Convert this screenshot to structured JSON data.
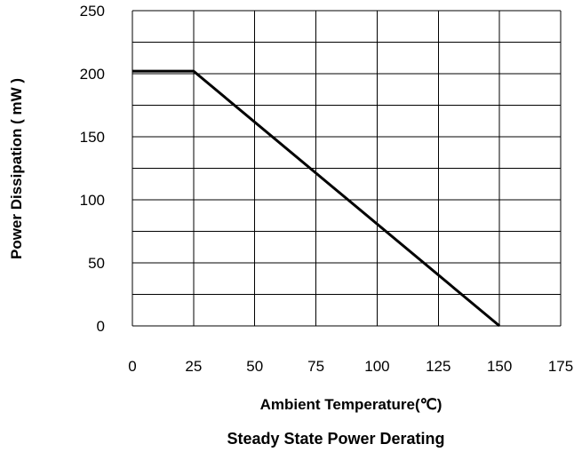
{
  "chart_data": {
    "type": "line",
    "title": "Steady State Power Derating",
    "xlabel": "Ambient Temperature(℃)",
    "ylabel": "Power Dissipation ( mW )",
    "xlim": [
      0,
      175
    ],
    "ylim": [
      0,
      250
    ],
    "x_ticks": [
      0,
      25,
      50,
      75,
      100,
      125,
      150,
      175
    ],
    "y_ticks": [
      0,
      50,
      100,
      150,
      200,
      250
    ],
    "x_tick_labels": [
      "0",
      "25",
      "50",
      "75",
      "100",
      "125",
      "150",
      "175"
    ],
    "y_tick_labels": [
      "0",
      "50",
      "100",
      "150",
      "200",
      "250"
    ],
    "x_gridlines": [
      0,
      25,
      50,
      75,
      100,
      125,
      150,
      175
    ],
    "y_gridlines": [
      0,
      25,
      50,
      75,
      100,
      125,
      150,
      175,
      200,
      225,
      250
    ],
    "grid": true,
    "legend": "none",
    "line_color": "#000000",
    "series": [
      {
        "points": [
          [
            0,
            202
          ],
          [
            25,
            202
          ],
          [
            150,
            0
          ]
        ]
      }
    ]
  }
}
